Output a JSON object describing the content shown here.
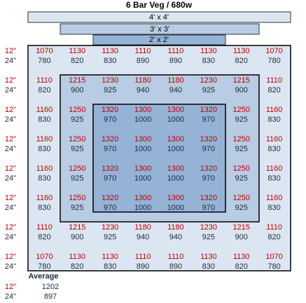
{
  "title": "6 Bar Veg / 680w",
  "footprints": [
    "4' x 4'",
    "3' x 3'",
    "2' x 2'"
  ],
  "heights": [
    "12\"",
    "24\""
  ],
  "grid": [
    [
      [
        1070,
        1130,
        1130,
        1110,
        1110,
        1130,
        1130,
        1070
      ],
      [
        780,
        820,
        830,
        890,
        890,
        830,
        820,
        780
      ]
    ],
    [
      [
        1110,
        1215,
        1230,
        1180,
        1180,
        1230,
        1215,
        1110
      ],
      [
        820,
        900,
        925,
        940,
        940,
        925,
        900,
        820
      ]
    ],
    [
      [
        1160,
        1250,
        1320,
        1300,
        1300,
        1320,
        1250,
        1160
      ],
      [
        830,
        925,
        970,
        1000,
        1000,
        970,
        925,
        830
      ]
    ],
    [
      [
        1160,
        1250,
        1320,
        1300,
        1300,
        1320,
        1250,
        1160
      ],
      [
        830,
        925,
        970,
        1000,
        1000,
        970,
        925,
        830
      ]
    ],
    [
      [
        1160,
        1250,
        1320,
        1300,
        1300,
        1320,
        1250,
        1160
      ],
      [
        830,
        925,
        970,
        1000,
        1000,
        970,
        925,
        830
      ]
    ],
    [
      [
        1160,
        1250,
        1320,
        1300,
        1300,
        1320,
        1250,
        1160
      ],
      [
        830,
        925,
        970,
        1000,
        1000,
        970,
        925,
        830
      ]
    ],
    [
      [
        1110,
        1215,
        1230,
        1180,
        1180,
        1230,
        1215,
        1110
      ],
      [
        820,
        900,
        925,
        940,
        940,
        925,
        900,
        820
      ]
    ],
    [
      [
        1070,
        1130,
        1130,
        1110,
        1110,
        1130,
        1130,
        1070
      ],
      [
        780,
        820,
        830,
        890,
        890,
        830,
        820,
        780
      ]
    ]
  ],
  "average": {
    "label": "Average",
    "values": [
      1202,
      897
    ]
  }
}
